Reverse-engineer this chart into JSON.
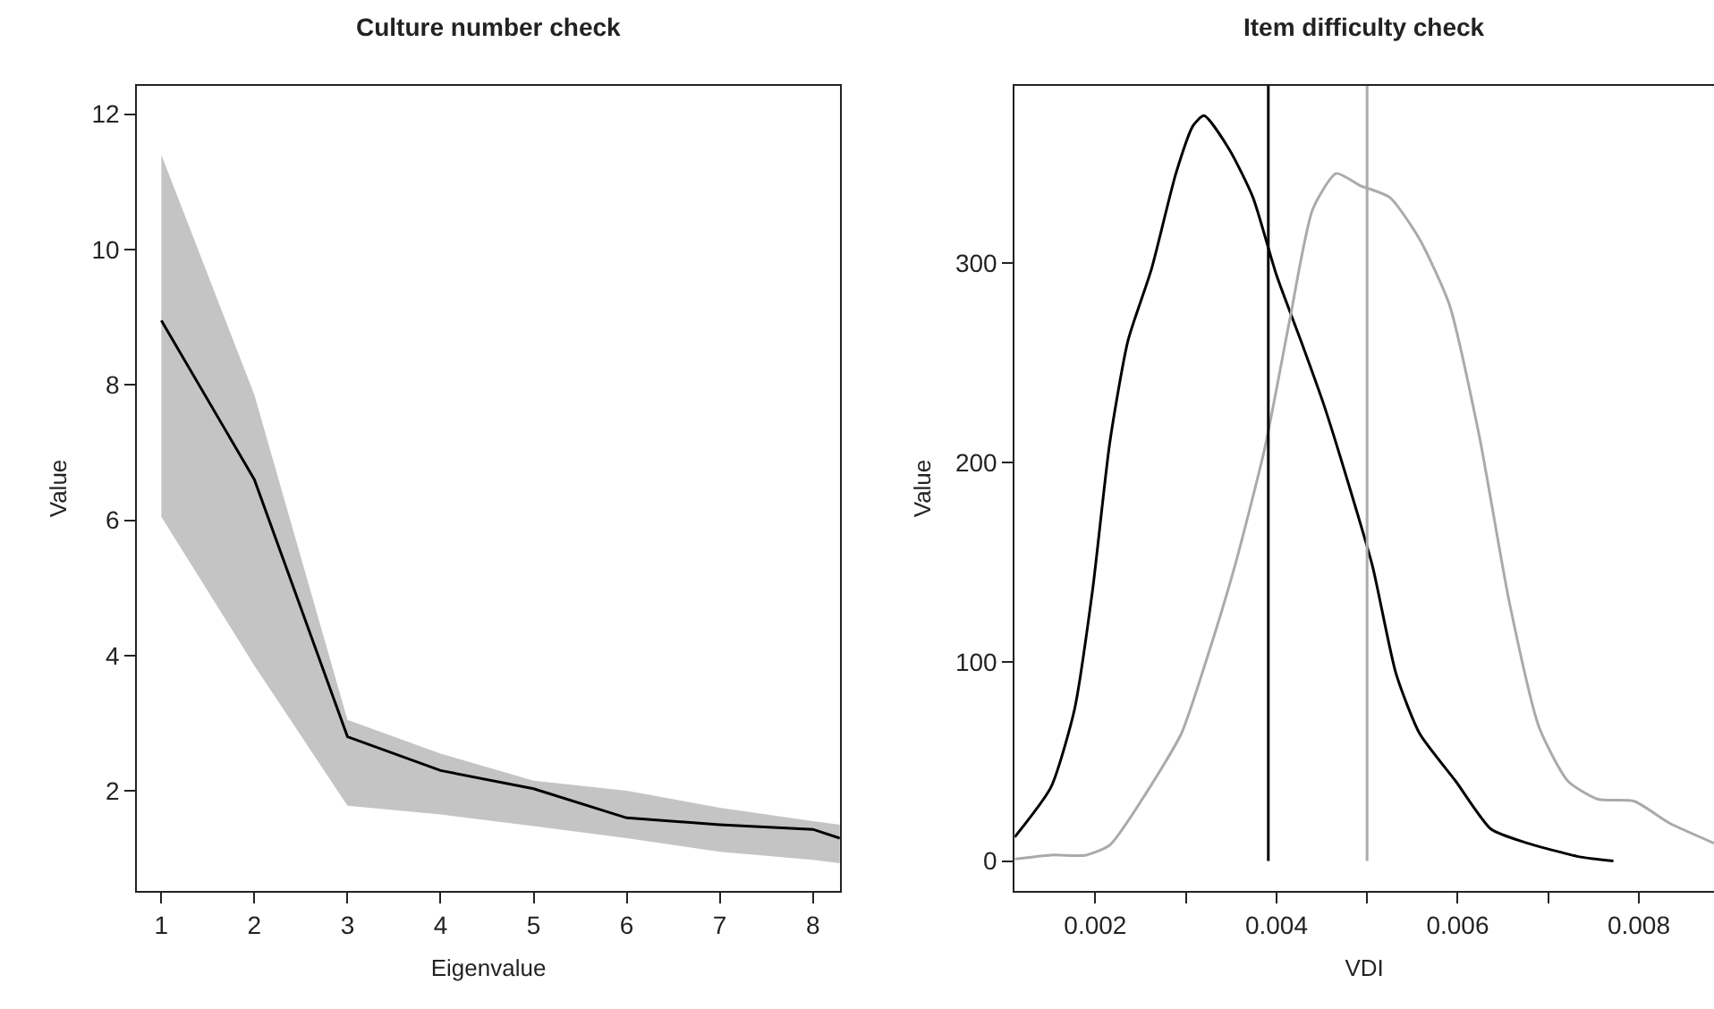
{
  "chart_data": [
    {
      "type": "line",
      "title": "Culture number check",
      "xlabel": "Eigenvalue",
      "ylabel": "Value",
      "xlim": [
        0.74,
        8.29
      ],
      "ylim": [
        0.52,
        12.42
      ],
      "xticks": [
        1,
        2,
        3,
        4,
        5,
        6,
        7,
        8
      ],
      "yticks": [
        2,
        4,
        6,
        8,
        10,
        12
      ],
      "marker": "none",
      "x": [
        1,
        2,
        3,
        4,
        5,
        6,
        7,
        8,
        8.29
      ],
      "series": [
        {
          "color": "#000000",
          "values": [
            8.95,
            6.6,
            2.8,
            2.3,
            2.03,
            1.6,
            1.5,
            1.43,
            1.3
          ],
          "lower": [
            6.05,
            3.85,
            1.78,
            1.65,
            1.48,
            1.3,
            1.1,
            0.98,
            0.93
          ],
          "upper": [
            11.4,
            7.85,
            3.05,
            2.55,
            2.15,
            2.0,
            1.75,
            1.55,
            1.5
          ]
        }
      ]
    },
    {
      "type": "line",
      "title": "Item difficulty check",
      "xlabel": "VDI",
      "ylabel": "Value",
      "xlim": [
        0.00111,
        0.00883
      ],
      "ylim": [
        -15,
        389
      ],
      "xticks": [
        0.002,
        {
          "value": 0.003,
          "label": null
        },
        0.004,
        {
          "value": 0.005,
          "label": null
        },
        0.006,
        {
          "value": 0.007,
          "label": null
        },
        0.008
      ],
      "yticks": [
        0,
        100,
        200,
        300
      ],
      "marker": "none",
      "series": [
        {
          "color": "#000000",
          "x": [
            0.00111,
            0.00151,
            0.00177,
            0.00197,
            0.00216,
            0.00236,
            0.00262,
            0.00289,
            0.00308,
            0.0032,
            0.00348,
            0.00374,
            0.004,
            0.00427,
            0.00453,
            0.00479,
            0.00506,
            0.00532,
            0.00558,
            0.00598,
            0.00637,
            0.00677,
            0.00709,
            0.00736,
            0.00772
          ],
          "values": [
            12,
            37,
            76,
            136,
            210,
            261,
            297,
            345,
            369,
            374,
            357,
            333,
            294,
            261,
            228,
            190,
            148,
            94,
            64,
            40,
            16,
            9,
            5,
            2,
            0
          ]
        },
        {
          "color": "#aaaaaa",
          "x": [
            0.00111,
            0.00151,
            0.0019,
            0.00216,
            0.00256,
            0.00295,
            0.00322,
            0.00354,
            0.00387,
            0.00414,
            0.0044,
            0.00466,
            0.00492,
            0.00525,
            0.00558,
            0.00591,
            0.00624,
            0.00657,
            0.0069,
            0.00722,
            0.00755,
            0.00795,
            0.00834,
            0.00883
          ],
          "values": [
            1,
            3,
            3,
            8,
            34,
            64,
            100,
            148,
            207,
            270,
            327,
            345,
            339,
            333,
            312,
            279,
            213,
            130,
            67,
            40,
            31,
            30,
            19,
            9
          ]
        }
      ],
      "ref_lines": [
        {
          "axis": "x",
          "value": 0.00391,
          "color": "#000000"
        },
        {
          "axis": "x",
          "value": 0.005,
          "color": "#aaaaaa"
        }
      ]
    }
  ]
}
